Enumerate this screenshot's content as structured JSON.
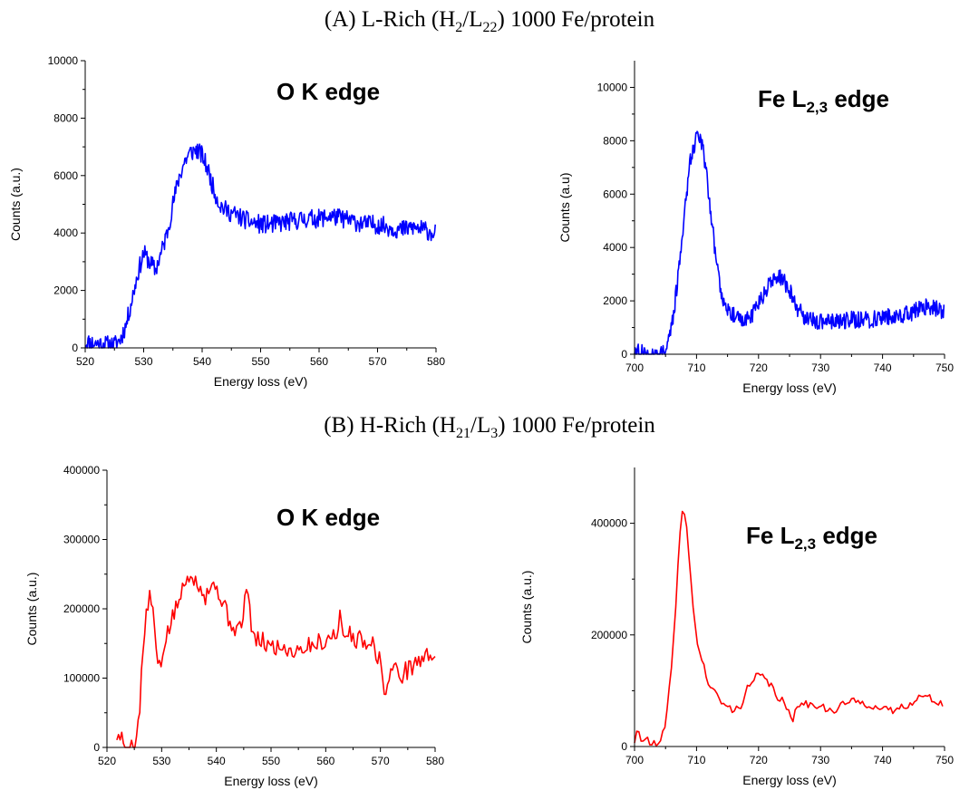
{
  "panels": {
    "a_title_prefix": "(A)",
    "a_title_text": "L-Rich (H",
    "a_sub1": "2",
    "a_mid": "/L",
    "a_sub2": "22",
    "a_suffix": ") 1000 Fe/protein",
    "b_title_prefix": "(B)",
    "b_title_text": "H-Rich (H",
    "b_sub1": "21",
    "b_mid": "/L",
    "b_sub2": "3",
    "b_suffix": ") 1000 Fe/protein"
  },
  "chart_data": [
    {
      "id": "A-O",
      "type": "line",
      "annotation": "O K edge",
      "annotation_sub": "",
      "annotation_after": "",
      "xlabel": "Energy loss (eV)",
      "ylabel": "Counts (a.u.)",
      "xlim": [
        520,
        580
      ],
      "ylim": [
        0,
        10000
      ],
      "xticks": [
        520,
        530,
        540,
        550,
        560,
        570,
        580
      ],
      "yticks": [
        0,
        2000,
        4000,
        6000,
        8000,
        10000
      ],
      "minor_ticks": true,
      "color": "#0000ff",
      "noise": 330,
      "noise_step": 0.12,
      "seed": 11,
      "series": [
        {
          "x": [
            520,
            522,
            524,
            525,
            526,
            527,
            528,
            529,
            530,
            531,
            532,
            533,
            534,
            535,
            536,
            537,
            538,
            539,
            540,
            541,
            542,
            543,
            544,
            545,
            546,
            548,
            550,
            552,
            555,
            558,
            560,
            562,
            564,
            566,
            568,
            570,
            572,
            574,
            576,
            578,
            580
          ],
          "y": [
            200,
            150,
            100,
            100,
            300,
            800,
            1700,
            2600,
            3300,
            3000,
            2700,
            3300,
            4000,
            5000,
            5900,
            6500,
            6800,
            6900,
            6700,
            6200,
            5500,
            5000,
            4800,
            4700,
            4600,
            4400,
            4300,
            4300,
            4400,
            4500,
            4500,
            4600,
            4500,
            4400,
            4300,
            4300,
            4200,
            4100,
            4200,
            4100,
            4000
          ]
        }
      ]
    },
    {
      "id": "A-Fe",
      "type": "line",
      "annotation": "Fe L",
      "annotation_sub": "2,3",
      "annotation_after": " edge",
      "xlabel": "Energy loss (eV)",
      "ylabel": "Counts (a.u)",
      "xlim": [
        700,
        750
      ],
      "ylim": [
        0,
        11000
      ],
      "xticks": [
        700,
        710,
        720,
        730,
        740,
        750
      ],
      "yticks": [
        0,
        2000,
        4000,
        6000,
        8000,
        10000
      ],
      "minor_ticks": true,
      "color": "#0000ff",
      "noise": 320,
      "noise_step": 0.1,
      "seed": 27,
      "series": [
        {
          "x": [
            700,
            702,
            704,
            705,
            706,
            707,
            708,
            709,
            710,
            710.5,
            711,
            712,
            713,
            714,
            715,
            716,
            717,
            718,
            719,
            720,
            721,
            722,
            723,
            724,
            725,
            726,
            727,
            728,
            730,
            732,
            735,
            738,
            740,
            742,
            744,
            746,
            748,
            750
          ],
          "y": [
            100,
            0,
            0,
            200,
            1000,
            2800,
            5200,
            7300,
            8200,
            8200,
            7800,
            6000,
            3800,
            2300,
            1700,
            1500,
            1300,
            1300,
            1500,
            1900,
            2300,
            2700,
            2900,
            2800,
            2400,
            1800,
            1500,
            1300,
            1200,
            1200,
            1300,
            1300,
            1400,
            1400,
            1500,
            1700,
            1800,
            1600
          ]
        }
      ]
    },
    {
      "id": "B-O",
      "type": "line",
      "annotation": "O K edge",
      "annotation_sub": "",
      "annotation_after": "",
      "xlabel": "Energy loss (eV)",
      "ylabel": "Counts (a.u.)",
      "xlim": [
        520,
        580
      ],
      "ylim": [
        0,
        400000
      ],
      "xticks": [
        520,
        530,
        540,
        550,
        560,
        570,
        580
      ],
      "yticks": [
        0,
        100000,
        200000,
        300000,
        400000
      ],
      "minor_ticks": true,
      "color": "#ff0000",
      "noise": 14000,
      "noise_step": 0.3,
      "seed": 5,
      "series": [
        {
          "x": [
            521.5,
            522,
            522.5,
            523,
            524,
            525,
            525.5,
            526,
            526.5,
            527,
            527.5,
            528,
            528.5,
            529,
            529.5,
            530,
            530.5,
            531,
            532,
            533,
            534,
            535,
            535.5,
            536,
            537,
            538,
            539,
            540,
            541,
            542,
            543,
            544,
            545,
            545.5,
            546,
            547,
            548,
            550,
            552,
            554,
            556,
            558,
            560,
            562,
            562.5,
            563,
            564,
            566,
            568,
            569,
            570,
            571,
            572,
            574,
            576,
            578,
            580
          ],
          "y": [
            30000,
            10000,
            20000,
            0,
            0,
            0,
            20000,
            60000,
            130000,
            175000,
            210000,
            215000,
            190000,
            140000,
            110000,
            120000,
            150000,
            165000,
            185000,
            210000,
            230000,
            250000,
            260000,
            240000,
            235000,
            220000,
            235000,
            230000,
            215000,
            190000,
            175000,
            170000,
            185000,
            240000,
            200000,
            150000,
            155000,
            145000,
            145000,
            140000,
            145000,
            150000,
            155000,
            165000,
            195000,
            160000,
            165000,
            155000,
            155000,
            145000,
            120000,
            75000,
            115000,
            105000,
            120000,
            130000,
            135000
          ]
        }
      ]
    },
    {
      "id": "B-Fe",
      "type": "line",
      "annotation": "Fe L",
      "annotation_sub": "2,3",
      "annotation_after": " edge",
      "xlabel": "Energy loss (eV)",
      "ylabel": "Counts (a.u.)",
      "xlim": [
        700,
        750
      ],
      "ylim": [
        0,
        500000
      ],
      "xticks": [
        700,
        710,
        720,
        730,
        740,
        750
      ],
      "yticks": [
        0,
        200000,
        400000
      ],
      "minor_ticks": true,
      "color": "#ff0000",
      "noise": 7000,
      "noise_step": 0.35,
      "seed": 41,
      "series": [
        {
          "x": [
            700,
            700.5,
            701,
            701.5,
            702,
            702.5,
            703,
            704,
            705,
            706,
            707,
            707.5,
            708,
            708.5,
            709,
            709.5,
            710,
            711,
            712,
            713,
            714,
            715,
            716,
            717,
            718,
            719,
            720,
            721,
            722,
            723,
            724,
            725,
            725.5,
            726,
            727,
            728,
            730,
            732,
            734,
            736,
            738,
            740,
            742,
            744,
            746,
            748,
            750
          ],
          "y": [
            10000,
            25000,
            15000,
            5000,
            28000,
            5000,
            5000,
            0,
            40000,
            140000,
            320000,
            410000,
            425000,
            380000,
            310000,
            250000,
            190000,
            150000,
            110000,
            95000,
            80000,
            70000,
            65000,
            70000,
            100000,
            115000,
            130000,
            120000,
            110000,
            90000,
            80000,
            55000,
            40000,
            75000,
            80000,
            75000,
            75000,
            60000,
            80000,
            80000,
            75000,
            65000,
            65000,
            75000,
            90000,
            85000,
            75000
          ]
        }
      ]
    }
  ]
}
